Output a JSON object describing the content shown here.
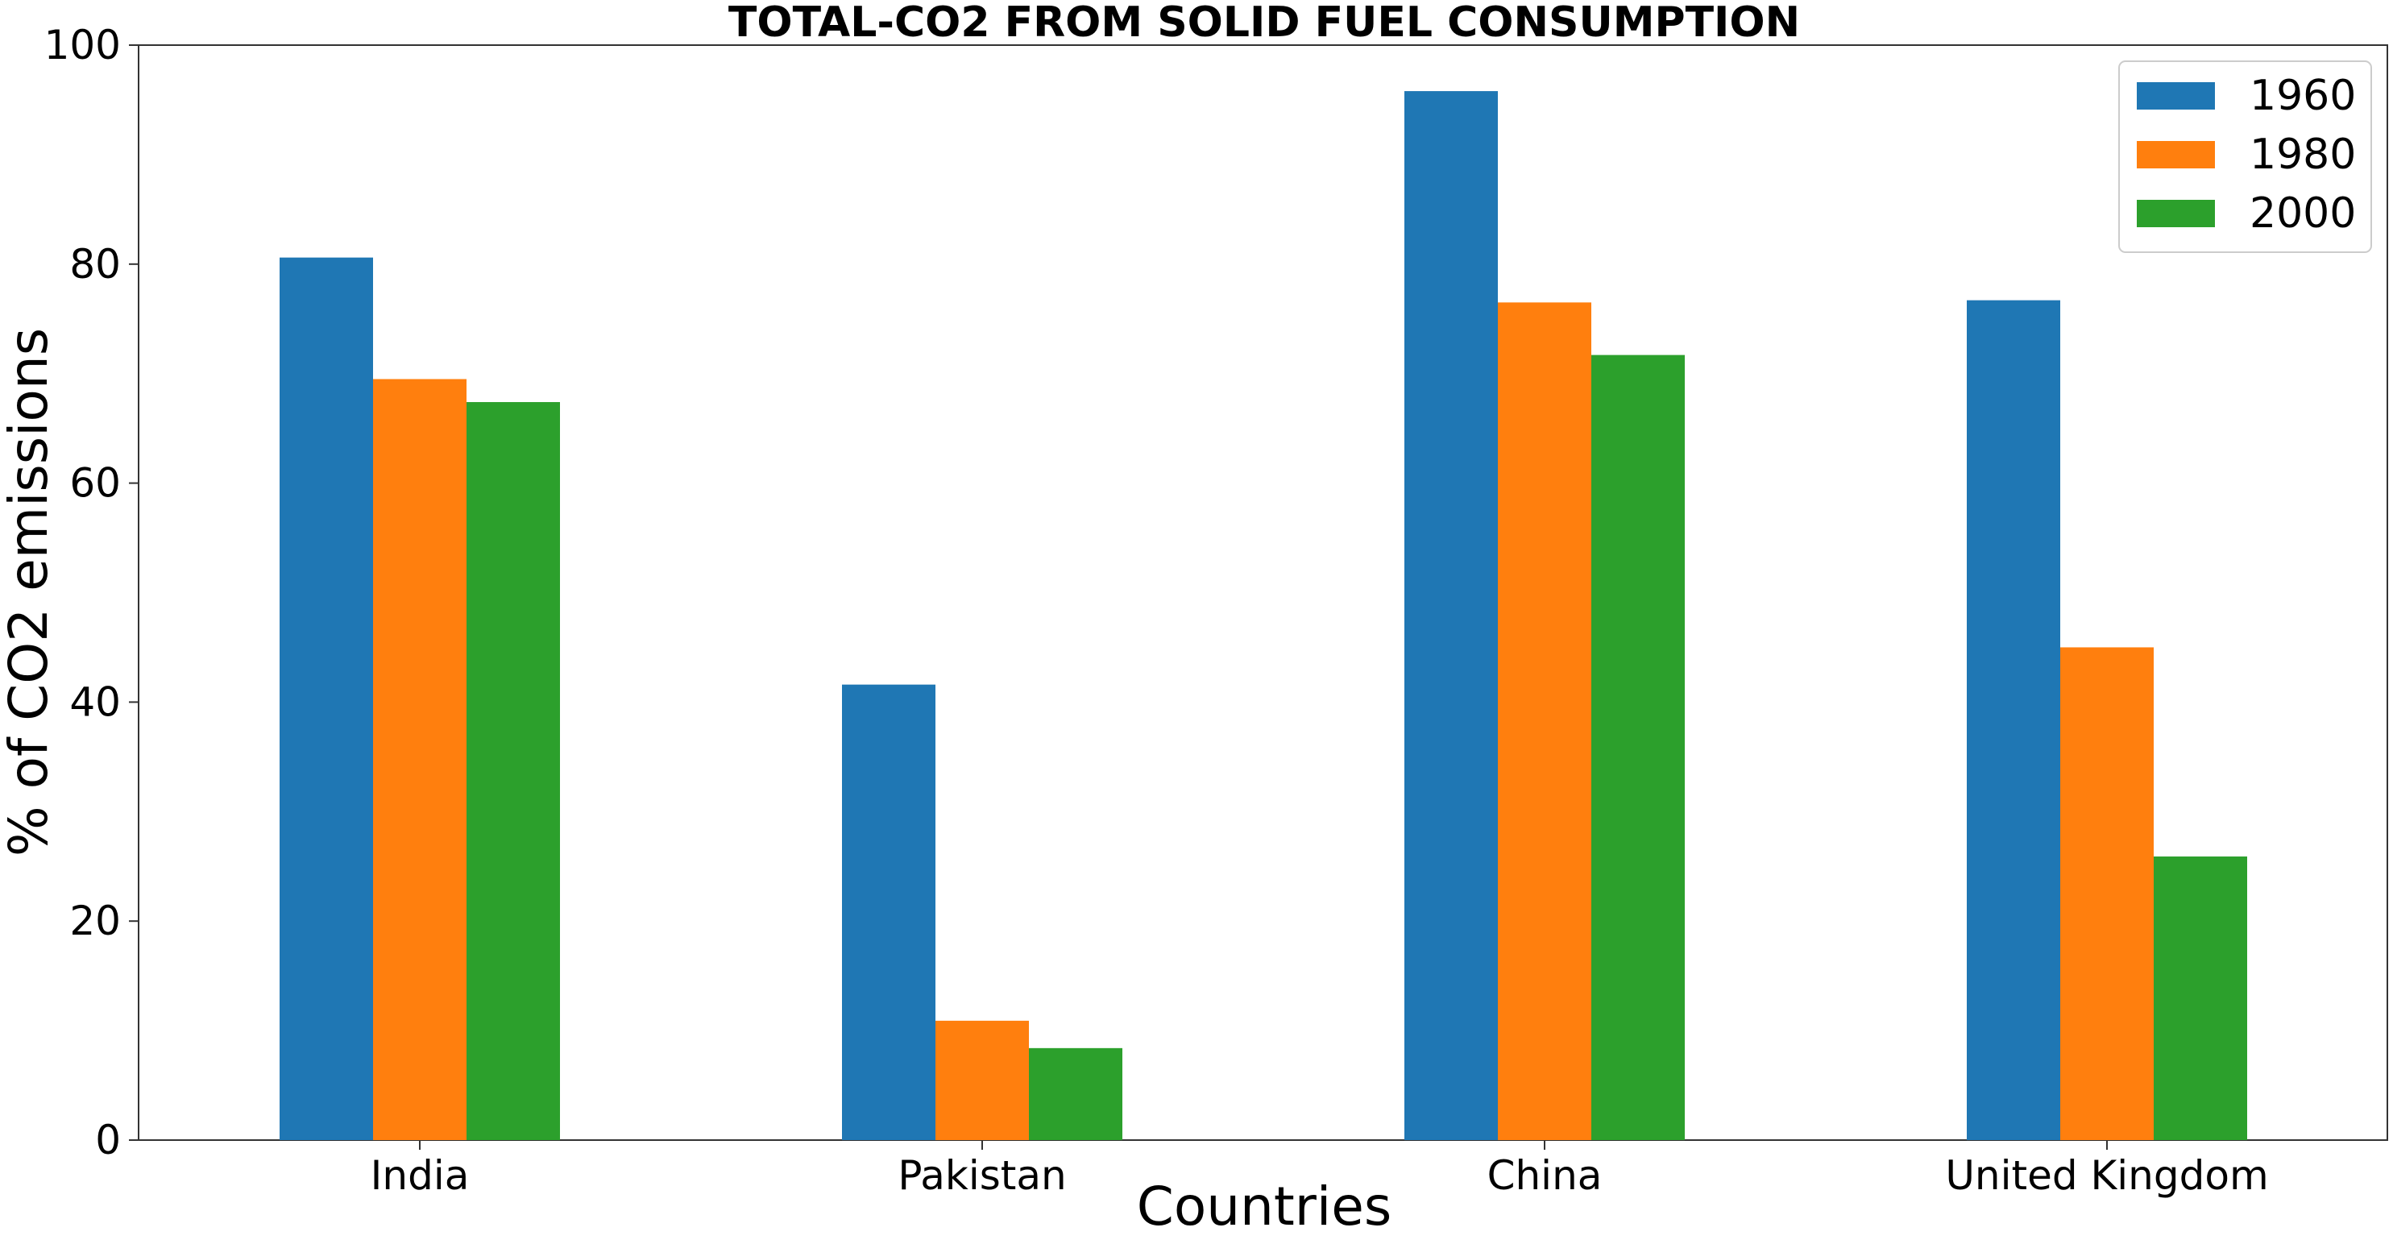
{
  "chart_data": {
    "type": "bar",
    "title": "TOTAL-CO2 FROM SOLID FUEL CONSUMPTION",
    "xlabel": "Countries",
    "ylabel": "% of CO2 emissions",
    "categories": [
      "India",
      "Pakistan",
      "China",
      "United Kingdom"
    ],
    "series": [
      {
        "name": "1960",
        "color": "#1f77b4",
        "values": [
          80.6,
          41.6,
          95.8,
          76.7
        ]
      },
      {
        "name": "1980",
        "color": "#ff7f0e",
        "values": [
          69.5,
          10.9,
          76.5,
          45.0
        ]
      },
      {
        "name": "2000",
        "color": "#2ca02c",
        "values": [
          67.4,
          8.4,
          71.7,
          25.9
        ]
      }
    ],
    "ylim": [
      0,
      100
    ],
    "yticks": [
      "0",
      "20",
      "40",
      "60",
      "80",
      "100"
    ],
    "grid": false,
    "legend_position": "top-right"
  }
}
